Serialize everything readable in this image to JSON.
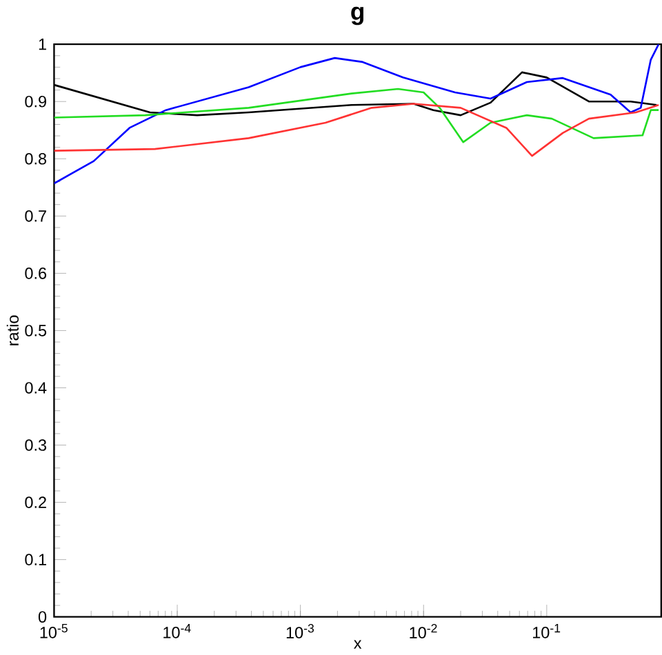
{
  "chart_data": {
    "type": "line",
    "title": "g",
    "xlabel": "x",
    "ylabel": "ratio",
    "log": "x",
    "xlim": [
      1e-05,
      0.85
    ],
    "ylim": [
      0,
      1
    ],
    "xticks": [
      {
        "value": 1e-05,
        "label": "10$^{-5}$"
      },
      {
        "value": 0.0001,
        "label": "10$^{-4}$"
      },
      {
        "value": 0.001,
        "label": "10$^{-3}$"
      },
      {
        "value": 0.01,
        "label": "10$^{-2}$"
      },
      {
        "value": 0.1,
        "label": "10$^{-1}$"
      }
    ],
    "yticks": [
      0,
      0.1,
      0.2,
      0.3,
      0.4,
      0.5,
      0.6,
      0.7,
      0.8,
      0.9,
      1
    ],
    "grid": false,
    "legend": false,
    "series": [
      {
        "color": "#000000",
        "x": [
          1e-05,
          6e-05,
          0.000145,
          0.00038,
          0.0026,
          0.0083,
          0.012,
          0.02,
          0.035,
          0.063,
          0.1,
          0.22,
          0.48,
          0.78
        ],
        "values": [
          0.929,
          0.881,
          0.876,
          0.881,
          0.894,
          0.896,
          0.885,
          0.876,
          0.898,
          0.951,
          0.942,
          0.9,
          0.9,
          0.894
        ]
      },
      {
        "color": "#0000ff",
        "x": [
          1e-05,
          2.1e-05,
          4.1e-05,
          8.1e-05,
          0.00038,
          0.001,
          0.0019,
          0.0032,
          0.0068,
          0.018,
          0.035,
          0.069,
          0.135,
          0.33,
          0.48,
          0.58,
          0.7,
          0.81
        ],
        "values": [
          0.757,
          0.796,
          0.854,
          0.885,
          0.925,
          0.96,
          0.976,
          0.969,
          0.942,
          0.916,
          0.905,
          0.934,
          0.941,
          0.912,
          0.881,
          0.889,
          0.973,
          1.0
        ]
      },
      {
        "color": "#22dd22",
        "x": [
          1e-05,
          5.5e-05,
          0.00038,
          0.0026,
          0.0062,
          0.01,
          0.0135,
          0.021,
          0.035,
          0.069,
          0.11,
          0.24,
          0.6,
          0.7,
          0.81
        ],
        "values": [
          0.872,
          0.876,
          0.889,
          0.914,
          0.922,
          0.916,
          0.889,
          0.829,
          0.863,
          0.876,
          0.87,
          0.836,
          0.841,
          0.885,
          0.885
        ]
      },
      {
        "color": "#ff3333",
        "x": [
          1e-05,
          6.6e-05,
          0.00038,
          0.0016,
          0.0038,
          0.0083,
          0.02,
          0.047,
          0.076,
          0.135,
          0.22,
          0.53,
          0.81
        ],
        "values": [
          0.814,
          0.817,
          0.836,
          0.863,
          0.889,
          0.896,
          0.889,
          0.854,
          0.805,
          0.845,
          0.87,
          0.881,
          0.894
        ]
      }
    ]
  }
}
